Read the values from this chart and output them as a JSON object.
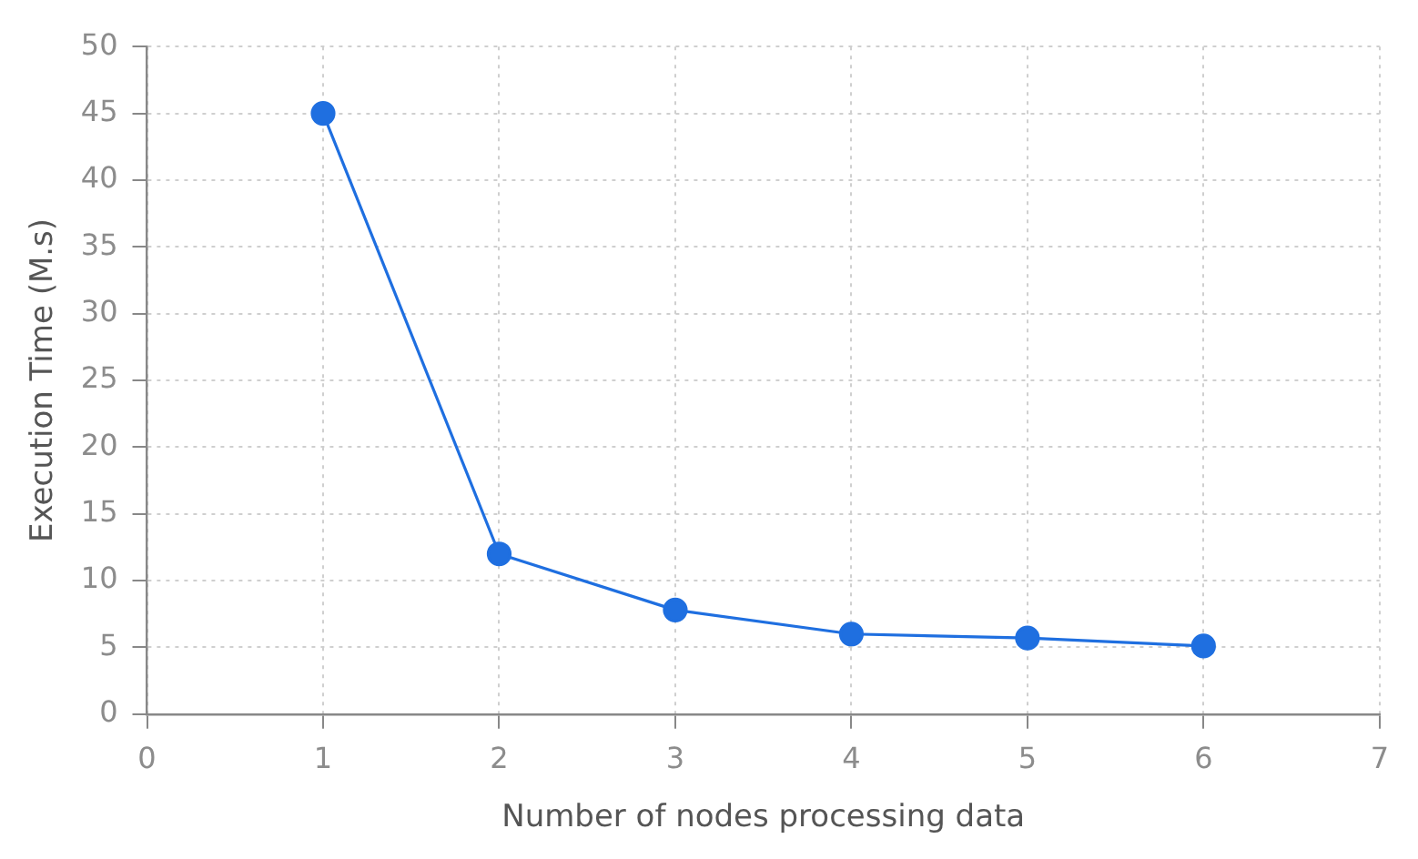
{
  "chart_data": {
    "type": "line",
    "xlabel": "Number of nodes processing data",
    "ylabel": "Execution Time (M.s)",
    "x": [
      1,
      2,
      3,
      4,
      5,
      6
    ],
    "series": [
      {
        "color": "#1f6fe0",
        "values": [
          45,
          12,
          7.8,
          6,
          5.7,
          5.1
        ]
      }
    ],
    "xlim": [
      0,
      7
    ],
    "xticks": [
      0,
      1,
      2,
      3,
      4,
      5,
      6,
      7
    ],
    "ylim": [
      0,
      50
    ],
    "yticks": [
      0,
      5,
      10,
      15,
      20,
      25,
      30,
      35,
      40,
      45,
      50
    ],
    "grid": true,
    "legend": false,
    "marker": "circle",
    "line_style": "solid"
  }
}
